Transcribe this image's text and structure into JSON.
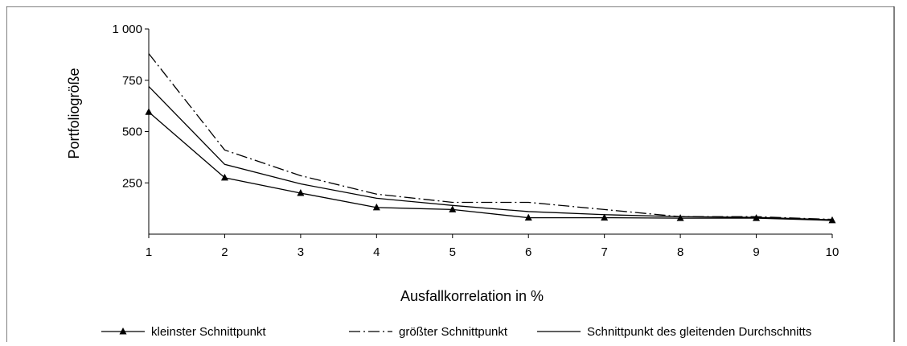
{
  "chart_data": {
    "type": "line",
    "title": "",
    "xlabel": "Ausfallkorrelation in %",
    "ylabel": "Portfoliogröße",
    "x": [
      1,
      2,
      3,
      4,
      5,
      6,
      7,
      8,
      9,
      10
    ],
    "x_tick_labels": [
      "1",
      "2",
      "3",
      "4",
      "5",
      "6",
      "7",
      "8",
      "9",
      "10"
    ],
    "ylim": [
      0,
      1000
    ],
    "y_ticks": [
      250,
      500,
      750,
      1000
    ],
    "y_tick_labels": [
      "250",
      "500",
      "750",
      "1 000"
    ],
    "grid": false,
    "legend_position": "bottom",
    "series": [
      {
        "name": "kleinster Schnittpunkt",
        "style": "solid-triangle-markers",
        "color": "#000000",
        "values": [
          595,
          275,
          200,
          130,
          120,
          80,
          80,
          78,
          78,
          67
        ]
      },
      {
        "name": "größter Schnittpunkt",
        "style": "dash-dot",
        "color": "#000000",
        "values": [
          880,
          410,
          285,
          195,
          155,
          155,
          120,
          85,
          85,
          72
        ]
      },
      {
        "name": "Schnittpunkt des gleitenden Durchschnitts",
        "style": "solid",
        "color": "#000000",
        "values": [
          720,
          340,
          245,
          175,
          140,
          110,
          95,
          85,
          82,
          70
        ]
      }
    ]
  }
}
